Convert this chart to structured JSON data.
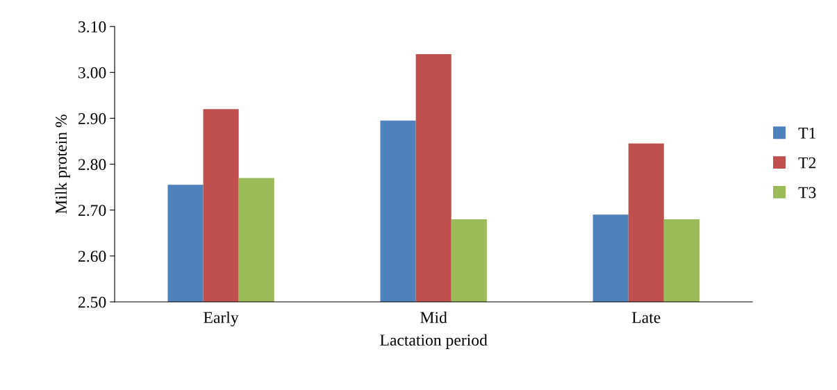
{
  "chart_data": {
    "type": "bar",
    "xlabel": "Lactation period",
    "ylabel": "Milk protein %",
    "categories": [
      "Early",
      "Mid",
      "Late"
    ],
    "series": [
      {
        "name": "T1",
        "color": "#4f81bd",
        "values": [
          2.755,
          2.895,
          2.69
        ]
      },
      {
        "name": "T2",
        "color": "#c0504d",
        "values": [
          2.92,
          3.04,
          2.845
        ]
      },
      {
        "name": "T3",
        "color": "#9bbb59",
        "values": [
          2.77,
          2.68,
          2.68
        ]
      }
    ],
    "ylim": [
      2.5,
      3.1
    ],
    "yticks": [
      {
        "value": 2.5,
        "label": "2.50"
      },
      {
        "value": 2.6,
        "label": "2.60"
      },
      {
        "value": 2.7,
        "label": "2.70"
      },
      {
        "value": 2.8,
        "label": "2.80"
      },
      {
        "value": 2.9,
        "label": "2.90"
      },
      {
        "value": 3.0,
        "label": "3.00"
      },
      {
        "value": 3.1,
        "label": "3.10"
      }
    ],
    "grid": false,
    "legend": "right"
  }
}
